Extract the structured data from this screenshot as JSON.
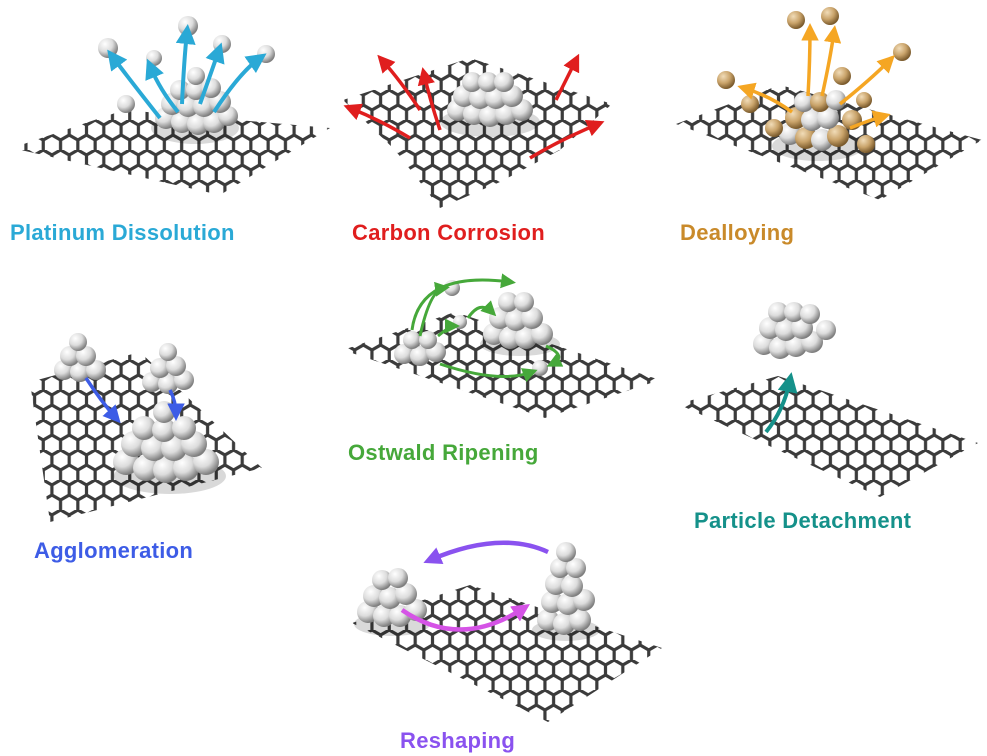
{
  "colors": {
    "platinum_dissolution": "#2aa9d6",
    "carbon_corrosion": "#e01e1e",
    "dealloying": "#c98a2a",
    "agglomeration": "#3d5ce6",
    "ostwald_ripening": "#46a83a",
    "particle_detachment": "#15918a",
    "reshaping": "#8a52ef",
    "reshaping_arrow_2": "#d553e6",
    "dealloying_arrows": "#f5a623",
    "graphene": "#3b3b3b",
    "atom": "#e3e3e3",
    "atom_shadow": "#8f8f8f",
    "alloy_atom": "#c9a36a"
  },
  "panels": [
    {
      "id": "platinum-dissolution",
      "label": "Platinum Dissolution",
      "color_key": "platinum_dissolution"
    },
    {
      "id": "carbon-corrosion",
      "label": "Carbon Corrosion",
      "color_key": "carbon_corrosion"
    },
    {
      "id": "dealloying",
      "label": "Dealloying",
      "color_key": "dealloying"
    },
    {
      "id": "agglomeration",
      "label": "Agglomeration",
      "color_key": "agglomeration"
    },
    {
      "id": "ostwald-ripening",
      "label": "Ostwald Ripening",
      "color_key": "ostwald_ripening"
    },
    {
      "id": "particle-detachment",
      "label": "Particle Detachment",
      "color_key": "particle_detachment"
    },
    {
      "id": "reshaping",
      "label": "Reshaping",
      "color_key": "reshaping"
    }
  ]
}
